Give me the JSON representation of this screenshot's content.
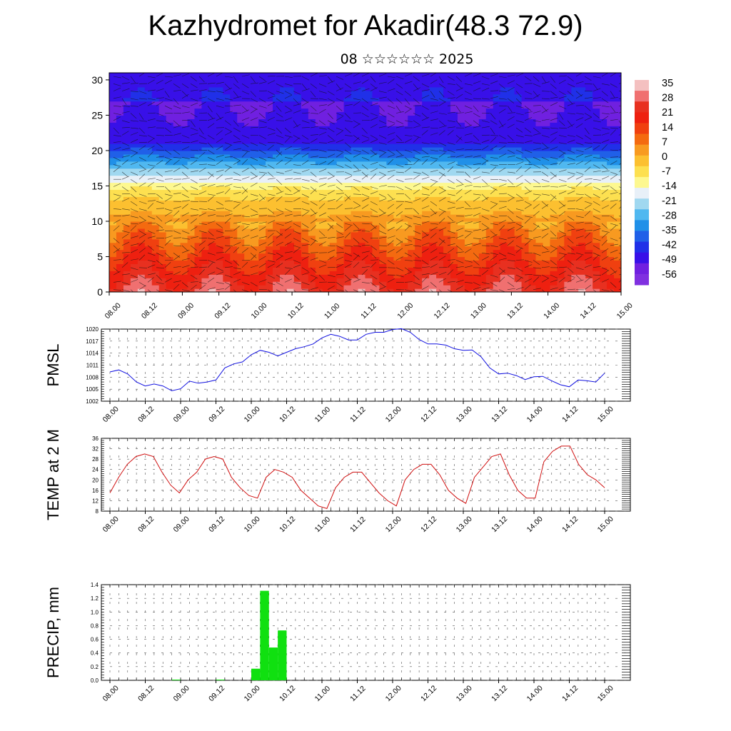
{
  "title": "Kazhydromet for Akadir(48.3 72.9)",
  "subtitle": "08 ☆☆☆☆☆☆ 2025",
  "chart_data": [
    {
      "type": "heatmap",
      "name": "cross-section",
      "xlabel": "",
      "ylabel": "",
      "ylim": [
        0,
        31
      ],
      "yticks": [
        0,
        5,
        10,
        15,
        20,
        25,
        30
      ],
      "x_tick_labels": [
        "08.00",
        "08.12",
        "09.00",
        "09.12",
        "10.00",
        "10.12",
        "11.00",
        "11.12",
        "12.00",
        "12.12",
        "13.00",
        "13.12",
        "14.00",
        "14.12",
        "15.00"
      ],
      "colorbar_labels": [
        "35",
        "28",
        "21",
        "14",
        "7",
        "0",
        "-7",
        "-14",
        "-21",
        "-28",
        "-35",
        "-42",
        "-49",
        "-56"
      ],
      "colorscale": [
        "#f4c0c0",
        "#f07070",
        "#e83020",
        "#ee2010",
        "#f04010",
        "#f46a10",
        "#f89a20",
        "#fcc030",
        "#fde050",
        "#fdf890",
        "#e8f0f8",
        "#a0d8f0",
        "#50b8f0",
        "#2090e8",
        "#2060e8",
        "#2030e8",
        "#3810e8",
        "#7020e0",
        "#8030e0"
      ]
    },
    {
      "type": "line",
      "ylabel": "PMSL",
      "ylim": [
        1002,
        1020
      ],
      "yticks": [
        1002,
        1005,
        1008,
        1011,
        1014,
        1017,
        1020
      ],
      "x_tick_labels": [
        "08.00",
        "08.12",
        "09.00",
        "09.12",
        "10.00",
        "10.12",
        "11.00",
        "11.12",
        "12.00",
        "12.12",
        "13.00",
        "13.12",
        "14.00",
        "14.12",
        "15.00"
      ],
      "line_color": "#1010e0",
      "values": [
        1009.3,
        1009.8,
        1008.8,
        1006.8,
        1005.8,
        1006.3,
        1005.8,
        1004.6,
        1005.1,
        1007.0,
        1006.5,
        1006.8,
        1007.3,
        1010.3,
        1011.3,
        1011.8,
        1013.6,
        1014.7,
        1014.2,
        1013.3,
        1014.2,
        1015.1,
        1015.6,
        1016.3,
        1017.8,
        1018.7,
        1018.2,
        1017.3,
        1017.3,
        1018.7,
        1019.2,
        1019.2,
        1019.9,
        1020.1,
        1019.2,
        1017.4,
        1016.3,
        1016.3,
        1016.0,
        1015.1,
        1014.7,
        1014.8,
        1013.1,
        1010.3,
        1008.8,
        1009.0,
        1008.4,
        1007.4,
        1008.1,
        1008.2,
        1007.1,
        1006.1,
        1005.6,
        1007.3,
        1007.1,
        1006.8,
        1009.0
      ]
    },
    {
      "type": "line",
      "ylabel": "TEMP at 2 M",
      "ylim": [
        8,
        36
      ],
      "yticks": [
        8,
        12,
        16,
        20,
        24,
        28,
        32,
        36
      ],
      "x_tick_labels": [
        "08.00",
        "08.12",
        "09.00",
        "09.12",
        "10.00",
        "10.12",
        "11.00",
        "11.12",
        "12.00",
        "12.12",
        "13.00",
        "13.12",
        "14.00",
        "14.12",
        "15.00"
      ],
      "line_color": "#d01010",
      "values": [
        15,
        21,
        26,
        29,
        30,
        29,
        23,
        18,
        15,
        20,
        23,
        28,
        29,
        28,
        21,
        17,
        14,
        13,
        21,
        24,
        23,
        21,
        16,
        13,
        10,
        9,
        17,
        21,
        23,
        23,
        19,
        15,
        12,
        10,
        20,
        24,
        26,
        26,
        22,
        16,
        13,
        11,
        21,
        25,
        29,
        30,
        22,
        16,
        13,
        13,
        27,
        31,
        33,
        33,
        26,
        22,
        20,
        17
      ]
    },
    {
      "type": "bar",
      "ylabel": "PRECIP, mm",
      "ylim": [
        0,
        1.4
      ],
      "yticks": [
        0.0,
        0.2,
        0.4,
        0.6,
        0.8,
        1.0,
        1.2,
        1.4
      ],
      "x_tick_labels": [
        "08.00",
        "08.12",
        "09.00",
        "09.12",
        "10.00",
        "10.12",
        "11.00",
        "11.12",
        "12.00",
        "12.12",
        "13.00",
        "13.12",
        "14.00",
        "14.12",
        "15.00"
      ],
      "bar_color": "#10e010",
      "values": [
        0,
        0,
        0,
        0,
        0,
        0,
        0,
        0.01,
        0,
        0,
        0,
        0,
        0.01,
        0,
        0,
        0,
        0.17,
        1.31,
        0.48,
        0.73,
        0,
        0,
        0,
        0,
        0,
        0,
        0,
        0,
        0,
        0,
        0,
        0,
        0,
        0,
        0,
        0,
        0,
        0,
        0,
        0,
        0,
        0,
        0,
        0,
        0,
        0,
        0,
        0,
        0,
        0,
        0,
        0,
        0,
        0,
        0,
        0
      ]
    }
  ]
}
